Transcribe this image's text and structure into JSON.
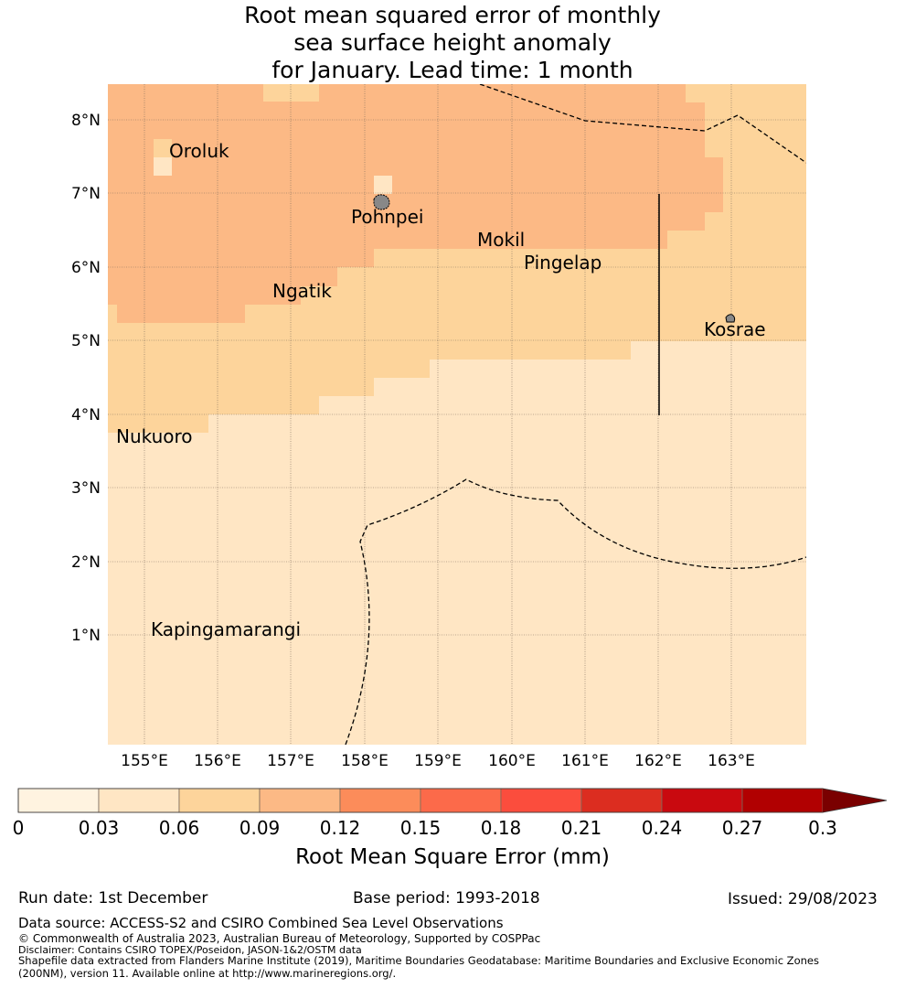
{
  "title": {
    "line1": "Root mean squared error of monthly",
    "line2": "sea surface height anomaly",
    "line3": "for January. Lead time: 1 month"
  },
  "map": {
    "lat_labels": [
      "8°N",
      "7°N",
      "6°N",
      "5°N",
      "4°N",
      "3°N",
      "2°N",
      "1°N"
    ],
    "lon_labels": [
      "155°E",
      "156°E",
      "157°E",
      "158°E",
      "159°E",
      "160°E",
      "161°E",
      "162°E",
      "163°E"
    ],
    "places": {
      "oroluk": "Oroluk",
      "pohnpei": "Pohnpei",
      "mokil": "Mokil",
      "pingelap": "Pingelap",
      "ngatik": "Ngatik",
      "kosrae": "Kosrae",
      "nukuoro": "Nukuoro",
      "kapingamarangi": "Kapingamarangi"
    },
    "colors": {
      "rmse_0_03": "#fff3e0",
      "rmse_03_06": "#ffe6c4",
      "rmse_06_09": "#fdd49b",
      "rmse_09_12": "#fcb985"
    }
  },
  "colorbar": {
    "ticks": [
      "0",
      "0.03",
      "0.06",
      "0.09",
      "0.12",
      "0.15",
      "0.18",
      "0.21",
      "0.24",
      "0.27",
      "0.3"
    ],
    "colors": [
      "#fff3e0",
      "#ffe6c4",
      "#fdd49b",
      "#fcb985",
      "#fc8c5a",
      "#fc6a4a",
      "#fb4d3d",
      "#dc2d20",
      "#c9090f",
      "#b10001"
    ],
    "extend_color": "#7a0000",
    "label": "Root Mean Square Error (mm)"
  },
  "footer": {
    "run_date": "Run date: 1st December",
    "base_period": "Base period: 1993-2018",
    "issued": "Issued: 29/08/2023",
    "data_source": "Data source: ACCESS-S2 and CSIRO Combined Sea Level Observations",
    "copyright": "© Commonwealth of Australia 2023, Australian Bureau of Meteorology, Supported by COSPPac",
    "disclaimer": "Disclaimer: Contains CSIRO TOPEX/Poseidon, JASON-1&2/OSTM data",
    "shapefile1": "Shapefile data extracted from Flanders Marine Institute (2019), Maritime Boundaries Geodatabase: Maritime Boundaries and Exclusive Economic Zones",
    "shapefile2": "(200NM), version 11. Available online at http://www.marineregions.org/."
  }
}
